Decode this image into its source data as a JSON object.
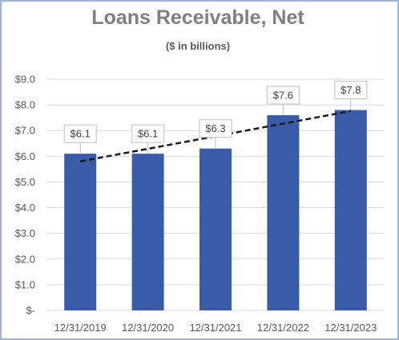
{
  "chart_data": {
    "type": "bar",
    "title": "Loans Receivable, Net",
    "subtitle": "($ in billions)",
    "categories": [
      "12/31/2019",
      "12/31/2020",
      "12/31/2021",
      "12/31/2022",
      "12/31/2023"
    ],
    "values": [
      6.1,
      6.1,
      6.3,
      7.6,
      7.8
    ],
    "data_labels": [
      "$6.1",
      "$6.1",
      "$6.3",
      "$7.6",
      "$7.8"
    ],
    "yticks": [
      0,
      1,
      2,
      3,
      4,
      5,
      6,
      7,
      8,
      9
    ],
    "ytick_labels": [
      "$-",
      "$1.0",
      "$2.0",
      "$3.0",
      "$4.0",
      "$5.0",
      "$6.0",
      "$7.0",
      "$8.0",
      "$9.0"
    ],
    "ylim": [
      0,
      9
    ],
    "grid": true,
    "legend": "none",
    "trendline": {
      "type": "linear",
      "style": "dashed",
      "color": "#1a1a1a"
    },
    "colors": {
      "bar": "#3a5ca8",
      "gridline": "#d9d9d9",
      "label_border": "#bfbfbf"
    }
  }
}
